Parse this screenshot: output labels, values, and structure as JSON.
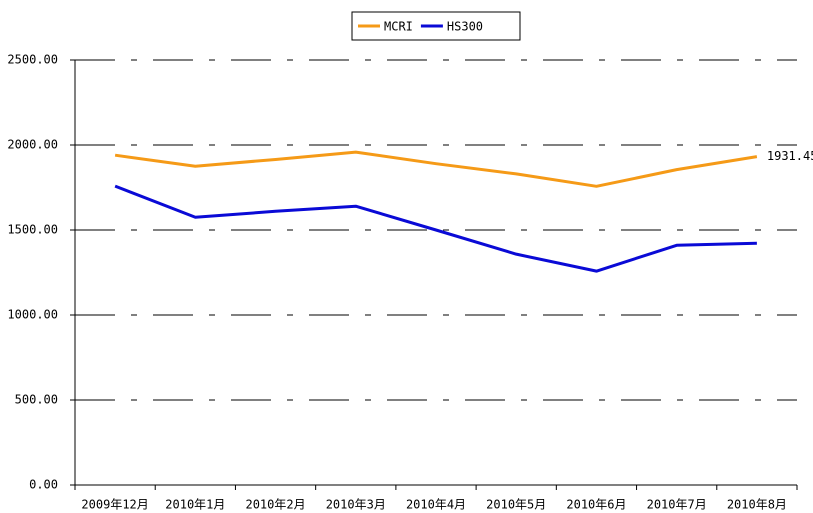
{
  "chart_data": {
    "type": "line",
    "categories": [
      "2009年12月",
      "2010年1月",
      "2010年2月",
      "2010年3月",
      "2010年4月",
      "2010年5月",
      "2010年6月",
      "2010年7月",
      "2010年8月"
    ],
    "series": [
      {
        "name": "MCRI",
        "color": "#f59a17",
        "values": [
          1940,
          1875,
          1915,
          1958,
          1890,
          1830,
          1757,
          1855,
          1931.45
        ]
      },
      {
        "name": "HS300",
        "color": "#0a0ad6",
        "values": [
          1758,
          1575,
          1610,
          1640,
          1500,
          1358,
          1258,
          1410,
          1422
        ]
      }
    ],
    "ylim": [
      0,
      2500
    ],
    "yticks": [
      {
        "value": 0,
        "label": "0.00"
      },
      {
        "value": 500,
        "label": "500.00"
      },
      {
        "value": 1000,
        "label": "1000.00"
      },
      {
        "value": 1500,
        "label": "1500.00"
      },
      {
        "value": 2000,
        "label": "2000.00"
      },
      {
        "value": 2500,
        "label": "2500.00"
      }
    ],
    "grid": true,
    "legend": "top"
  }
}
